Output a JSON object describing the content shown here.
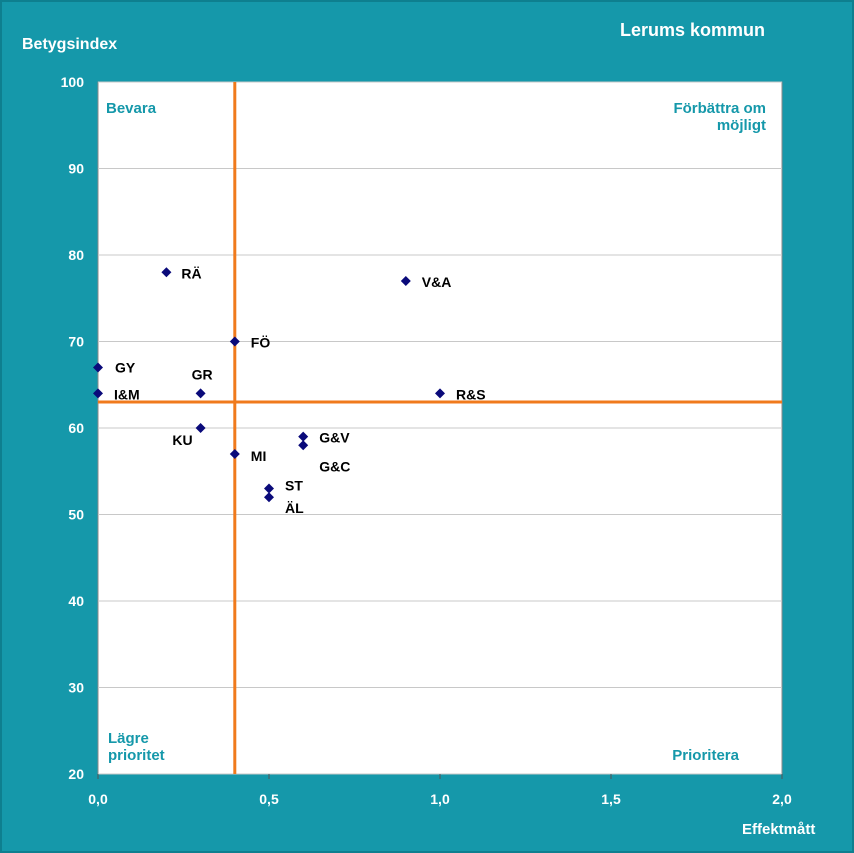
{
  "title": "Lerums kommun",
  "ylabel": "Betygsindex",
  "xlabel": "Effektmått",
  "colors": {
    "background": "#1598aa",
    "plot": "#ffffff",
    "threshold": "#f07a1c",
    "marker": "#0a0a7a",
    "quadrant_text": "#1598aa"
  },
  "quadrants": {
    "top_left": [
      "Bevara"
    ],
    "top_right": [
      "Förbättra om",
      "möjligt"
    ],
    "bottom_left": [
      "Lägre",
      "prioritet"
    ],
    "bottom_right": [
      "Prioritera"
    ]
  },
  "chart_data": {
    "type": "scatter",
    "title": "Lerums kommun",
    "xlabel": "Effektmått",
    "ylabel": "Betygsindex",
    "xlim": [
      0,
      2
    ],
    "ylim": [
      20,
      100
    ],
    "x_ticks": [
      "0,0",
      "0,5",
      "1,0",
      "1,5",
      "2,0"
    ],
    "y_ticks": [
      "20",
      "30",
      "40",
      "50",
      "60",
      "70",
      "80",
      "90",
      "100"
    ],
    "grid": true,
    "thresholds": {
      "x": 0.4,
      "y": 63
    },
    "points": [
      {
        "label": "RÄ",
        "x": 0.2,
        "y": 78
      },
      {
        "label": "V&A",
        "x": 0.9,
        "y": 77
      },
      {
        "label": "FÖ",
        "x": 0.4,
        "y": 70
      },
      {
        "label": "GY",
        "x": 0.0,
        "y": 67
      },
      {
        "label": "I&M",
        "x": 0.0,
        "y": 64
      },
      {
        "label": "GR",
        "x": 0.3,
        "y": 64
      },
      {
        "label": "R&S",
        "x": 1.0,
        "y": 64
      },
      {
        "label": "KU",
        "x": 0.3,
        "y": 60
      },
      {
        "label": "G&V",
        "x": 0.6,
        "y": 59
      },
      {
        "label": "G&C",
        "x": 0.6,
        "y": 58
      },
      {
        "label": "MI",
        "x": 0.4,
        "y": 57
      },
      {
        "label": "ST",
        "x": 0.5,
        "y": 53
      },
      {
        "label": "ÄL",
        "x": 0.5,
        "y": 52
      }
    ]
  }
}
